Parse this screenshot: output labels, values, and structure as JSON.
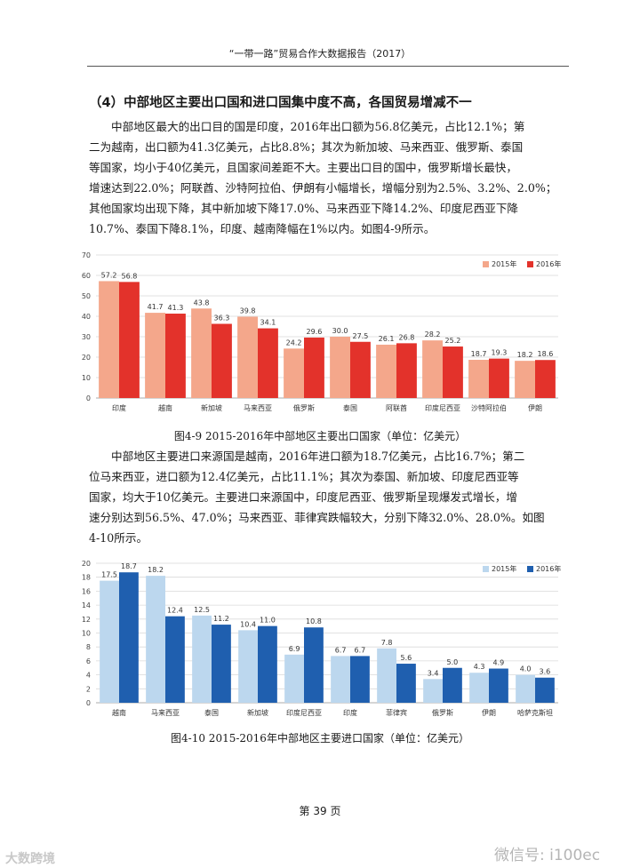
{
  "header": {
    "title": "“一带一路”贸易合作大数据报告（2017）"
  },
  "section_heading": "（4）中部地区主要出口国和进口国集中度不高，各国贸易增减不一",
  "paragraph1": [
    "中部地区最大的出口目的国是印度，2016年出口额为56.8亿美元，占比12.1%；第",
    "二为越南，出口额为41.3亿美元，占比8.8%；其次为新加坡、马来西亚、俄罗斯、泰国",
    "等国家，均小于40亿美元，且国家间差距不大。主要出口目的国中，俄罗斯增长最快，",
    "增速达到22.0%；阿联酋、沙特阿拉伯、伊朗有小幅增长，增幅分别为2.5%、3.2%、2.0%；",
    "其他国家均出现下降，其中新加坡下降17.0%、马来西亚下降14.2%、印度尼西亚下降",
    "10.7%、泰国下降8.1%，印度、越南降幅在1%以内。如图4-9所示。"
  ],
  "caption1": "图4-9  2015-2016年中部地区主要出口国家（单位：亿美元）",
  "paragraph2": [
    "中部地区主要进口来源国是越南，2016年进口额为18.7亿美元，占比16.7%；第二",
    "位马来西亚，进口额为12.4亿美元，占比11.1%；其次为泰国、新加坡、印度尼西亚等",
    "国家，均大于10亿美元。主要进口来源国中，印度尼西亚、俄罗斯呈现爆发式增长，增",
    "速分别达到56.5%、47.0%；马来西亚、菲律宾跌幅较大，分别下降32.0%、28.0%。如图",
    "4-10所示。"
  ],
  "caption2": "图4-10  2015-2016年中部地区主要进口国家（单位：亿美元）",
  "page_number": "第 39 页",
  "footer": {
    "left_text": "大数跨境",
    "right_text": "微信号: i100ec"
  },
  "chart_data": [
    {
      "type": "bar",
      "categories": [
        "印度",
        "越南",
        "新加坡",
        "马来西亚",
        "俄罗斯",
        "泰国",
        "阿联酋",
        "印度尼西亚",
        "沙特阿拉伯",
        "伊朗"
      ],
      "series": [
        {
          "name": "2015年",
          "values": [
            57.2,
            41.7,
            43.8,
            39.8,
            24.2,
            30.0,
            26.1,
            28.2,
            18.7,
            18.2
          ],
          "color": "#f4a78b"
        },
        {
          "name": "2016年",
          "values": [
            56.8,
            41.3,
            36.3,
            34.1,
            29.6,
            27.5,
            26.8,
            25.2,
            19.3,
            18.6
          ],
          "color": "#e3322b"
        }
      ],
      "data_labels": [
        [
          "57.2",
          "41.7",
          "43.8",
          "39.8",
          "24.2",
          "30.0",
          "26.1",
          "28.2",
          "18.7",
          "18.2"
        ],
        [
          "56.8",
          "41.3",
          "36.3",
          "34.1",
          "29.6",
          "27.5",
          "26.8",
          "25.2",
          "19.3",
          "18.6"
        ]
      ],
      "yticks": [
        "0",
        "10",
        "20",
        "30",
        "40",
        "50",
        "60",
        "70"
      ],
      "ylim": [
        0,
        70
      ],
      "grid": true,
      "legend": "top-right",
      "title": "",
      "xlabel": "",
      "ylabel": ""
    },
    {
      "type": "bar",
      "categories": [
        "越南",
        "马来西亚",
        "泰国",
        "新加坡",
        "印度尼西亚",
        "印度",
        "菲律宾",
        "俄罗斯",
        "伊朗",
        "哈萨克斯坦"
      ],
      "series": [
        {
          "name": "2015年",
          "values": [
            17.5,
            18.2,
            12.5,
            10.4,
            6.9,
            6.7,
            7.8,
            3.4,
            4.3,
            4.0
          ],
          "color": "#bcd7ee"
        },
        {
          "name": "2016年",
          "values": [
            18.7,
            12.4,
            11.2,
            11.0,
            10.8,
            6.7,
            5.6,
            5.0,
            4.9,
            3.6
          ],
          "color": "#1f5faf"
        }
      ],
      "data_labels": [
        [
          "17.5",
          "18.2",
          "12.5",
          "10.4",
          "6.9",
          "6.7",
          "7.8",
          "3.4",
          "4.3",
          "4.0"
        ],
        [
          "18.7",
          "12.4",
          "11.2",
          "11.0",
          "10.8",
          "6.7",
          "5.6",
          "5.0",
          "4.9",
          "3.6"
        ]
      ],
      "yticks": [
        "0",
        "2",
        "4",
        "6",
        "8",
        "10",
        "12",
        "14",
        "16",
        "18",
        "20"
      ],
      "ylim": [
        0,
        20
      ],
      "grid": true,
      "legend": "top-right",
      "title": "",
      "xlabel": "",
      "ylabel": ""
    }
  ]
}
